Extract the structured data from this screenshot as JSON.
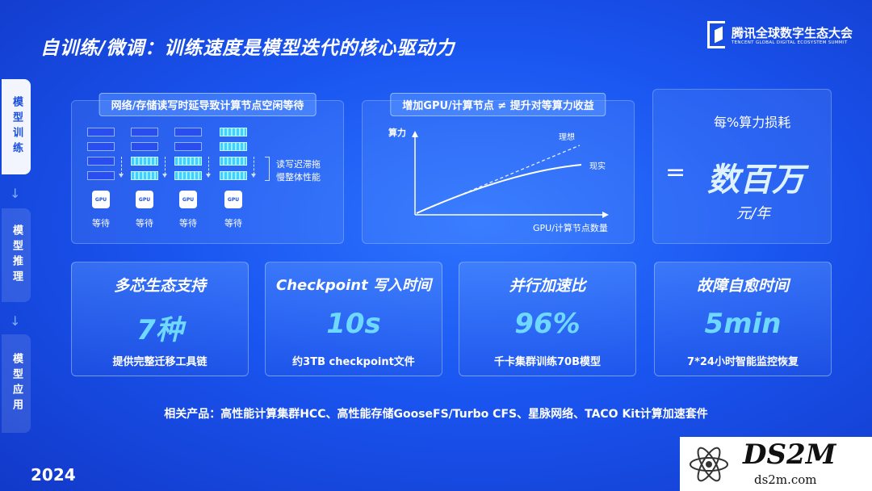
{
  "title": "自训练/微调：训练速度是模型迭代的核心驱动力",
  "logo": {
    "cn": "腾讯全球数字生态大会",
    "en": "TENCENT GLOBAL DIGITAL ECOSYSTEM SUMMIT"
  },
  "sidebar": [
    {
      "label": "模型训练",
      "active": true
    },
    {
      "label": "模型推理",
      "active": false
    },
    {
      "label": "模型应用",
      "active": false
    }
  ],
  "panel1": {
    "tag": "网络/存储读写时延导致计算节点空闲等待",
    "gpu_label": "GPU",
    "waits": [
      "等待",
      "等待",
      "等待",
      "等待"
    ],
    "lag_text": [
      "读写迟滞拖",
      "慢整体性能"
    ]
  },
  "panel2": {
    "tag": "增加GPU/计算节点 ≠ 提升对等算力收益",
    "ylabel": "算力",
    "xlabel": "GPU/计算节点数量",
    "ideal_label": "理想",
    "real_label": "现实"
  },
  "metric": {
    "label": "每%算力损耗",
    "equals": "=",
    "value": "数百万",
    "unit": "元/年"
  },
  "cards": [
    {
      "title": "多芯生态支持",
      "value": "7种",
      "desc": "提供完整迁移工具链"
    },
    {
      "title": "Checkpoint 写入时间",
      "value": "10s",
      "desc": "约3TB checkpoint文件"
    },
    {
      "title": "并行加速比",
      "value": "96%",
      "desc": "千卡集群训练70B模型"
    },
    {
      "title": "故障自愈时间",
      "value": "5min",
      "desc": "7*24小时智能监控恢复"
    }
  ],
  "related": "相关产品：高性能计算集群HCC、高性能存储GooseFS/Turbo CFS、星脉网络、TACO Kit计算加速套件",
  "year": "2024",
  "watermark": {
    "title": "DS2M",
    "sub": "ds2m.com"
  }
}
